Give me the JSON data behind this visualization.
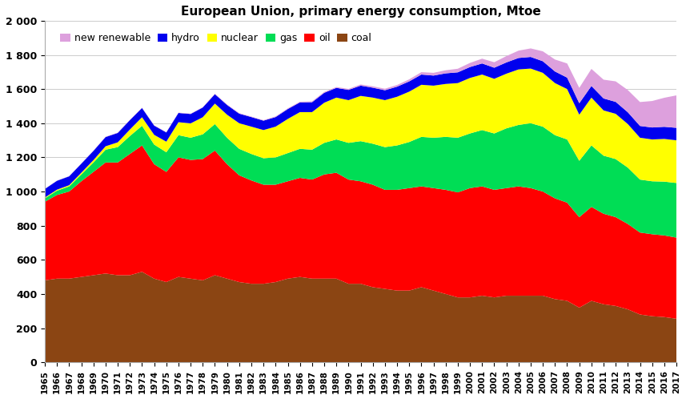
{
  "title": "European Union, primary energy consumption, Mtoe",
  "years": [
    1965,
    1966,
    1967,
    1968,
    1969,
    1970,
    1971,
    1972,
    1973,
    1974,
    1975,
    1976,
    1977,
    1978,
    1979,
    1980,
    1981,
    1982,
    1983,
    1984,
    1985,
    1986,
    1987,
    1988,
    1989,
    1990,
    1991,
    1992,
    1993,
    1994,
    1995,
    1996,
    1997,
    1998,
    1999,
    2000,
    2001,
    2002,
    2003,
    2004,
    2005,
    2006,
    2007,
    2008,
    2009,
    2010,
    2011,
    2012,
    2013,
    2014,
    2015,
    2016,
    2017
  ],
  "coal": [
    480,
    490,
    490,
    500,
    510,
    520,
    510,
    510,
    530,
    490,
    470,
    500,
    490,
    480,
    510,
    490,
    470,
    460,
    460,
    470,
    490,
    500,
    490,
    490,
    490,
    460,
    460,
    440,
    430,
    420,
    420,
    440,
    420,
    400,
    380,
    380,
    390,
    380,
    390,
    390,
    390,
    390,
    370,
    360,
    320,
    360,
    340,
    330,
    310,
    280,
    270,
    265,
    255
  ],
  "oil": [
    460,
    490,
    510,
    560,
    605,
    650,
    660,
    710,
    740,
    670,
    645,
    700,
    695,
    710,
    730,
    670,
    625,
    605,
    580,
    570,
    570,
    580,
    580,
    610,
    620,
    610,
    600,
    600,
    580,
    590,
    600,
    590,
    600,
    610,
    615,
    640,
    640,
    630,
    630,
    640,
    630,
    610,
    590,
    575,
    530,
    550,
    530,
    520,
    500,
    480,
    480,
    478,
    475
  ],
  "gas": [
    20,
    25,
    30,
    40,
    55,
    75,
    90,
    105,
    115,
    115,
    115,
    130,
    130,
    145,
    155,
    155,
    155,
    155,
    155,
    160,
    165,
    170,
    175,
    185,
    195,
    215,
    235,
    240,
    250,
    260,
    270,
    290,
    295,
    310,
    320,
    320,
    330,
    330,
    350,
    360,
    380,
    380,
    370,
    370,
    330,
    360,
    340,
    340,
    330,
    310,
    310,
    315,
    320
  ],
  "nuclear": [
    5,
    6,
    7,
    10,
    14,
    20,
    28,
    38,
    50,
    57,
    62,
    76,
    84,
    100,
    120,
    135,
    150,
    160,
    165,
    180,
    200,
    215,
    220,
    235,
    245,
    250,
    265,
    270,
    275,
    285,
    295,
    305,
    305,
    310,
    320,
    325,
    325,
    320,
    320,
    325,
    320,
    315,
    305,
    295,
    270,
    280,
    265,
    265,
    255,
    245,
    245,
    250,
    250
  ],
  "hydro": [
    50,
    52,
    52,
    53,
    54,
    54,
    55,
    55,
    54,
    54,
    54,
    54,
    55,
    57,
    55,
    57,
    56,
    56,
    55,
    56,
    58,
    57,
    58,
    58,
    57,
    60,
    60,
    58,
    58,
    59,
    60,
    60,
    59,
    62,
    63,
    64,
    65,
    65,
    66,
    67,
    68,
    68,
    68,
    67,
    67,
    68,
    70,
    70,
    69,
    69,
    70,
    71,
    73
  ],
  "new_renewable": [
    1,
    1,
    1,
    1,
    2,
    2,
    2,
    2,
    2,
    2,
    2,
    2,
    2,
    2,
    3,
    3,
    3,
    3,
    3,
    4,
    4,
    4,
    5,
    5,
    5,
    6,
    7,
    8,
    9,
    10,
    12,
    14,
    16,
    18,
    21,
    24,
    28,
    32,
    37,
    43,
    50,
    58,
    70,
    83,
    90,
    100,
    110,
    120,
    130,
    140,
    155,
    170,
    190
  ],
  "colors": {
    "coal": "#8B4513",
    "oil": "#FF0000",
    "gas": "#00DD55",
    "nuclear": "#FFFF00",
    "hydro": "#0000EE",
    "new_renewable": "#DDA0DD"
  },
  "ylim": [
    0,
    2000
  ],
  "yticks": [
    0,
    200,
    400,
    600,
    800,
    1000,
    1200,
    1400,
    1600,
    1800,
    2000
  ],
  "ytick_labels": [
    "0",
    "200",
    "400",
    "600",
    "800",
    "1 000",
    "1 200",
    "1 400",
    "1 600",
    "1 800",
    "2 000"
  ]
}
